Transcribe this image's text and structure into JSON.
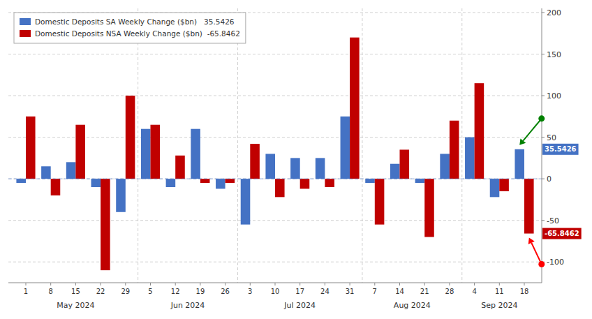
{
  "chart_data": {
    "type": "bar",
    "categories": [
      "1",
      "8",
      "15",
      "22",
      "29",
      "5",
      "12",
      "19",
      "26",
      "3",
      "10",
      "17",
      "24",
      "31",
      "7",
      "14",
      "21",
      "28",
      "4",
      "11",
      "18"
    ],
    "category_groups": [
      {
        "label": "May 2024",
        "count": 5
      },
      {
        "label": "Jun 2024",
        "count": 4
      },
      {
        "label": "Jul 2024",
        "count": 5
      },
      {
        "label": "Aug 2024",
        "count": 4
      },
      {
        "label": "Sep 2024",
        "count": 3
      }
    ],
    "series": [
      {
        "name": "Domestic Deposits SA Weekly Change ($bn)   35.5426",
        "color": "#4472C4",
        "values": [
          -5,
          15,
          20,
          -10,
          -40,
          60,
          -10,
          60,
          -12,
          -55,
          30,
          25,
          25,
          75,
          -5,
          18,
          -5,
          30,
          50,
          -22,
          35.5426
        ]
      },
      {
        "name": "Domestic Deposits NSA Weekly Change ($bn)  -65.8462",
        "color": "#C00000",
        "values": [
          75,
          -20,
          65,
          -110,
          100,
          65,
          28,
          -5,
          -5,
          42,
          -22,
          -12,
          -10,
          170,
          -55,
          35,
          -70,
          70,
          115,
          -15,
          -65.8462
        ]
      }
    ],
    "annotations": [
      {
        "text": "35.5426",
        "y": 35.5426,
        "color": "#4472C4",
        "arrow_color": "green"
      },
      {
        "text": "-65.8462",
        "y": -65.8462,
        "color": "#C00000",
        "arrow_color": "red"
      }
    ],
    "ylim": [
      -125,
      205
    ],
    "yticks": [
      -100,
      -50,
      0,
      50,
      100,
      150,
      200
    ],
    "grid": true,
    "legend": "upper left"
  }
}
